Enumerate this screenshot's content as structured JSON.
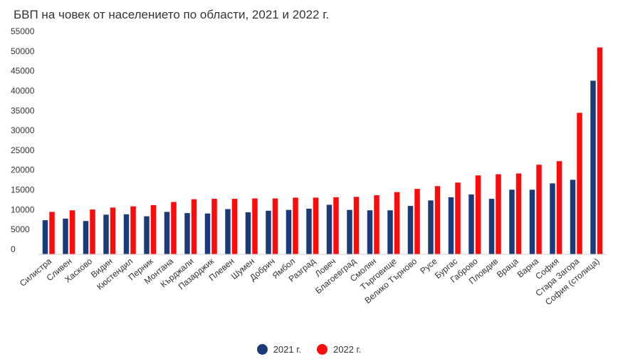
{
  "chart_data": {
    "type": "bar",
    "title": "БВП на човек от населението по области, 2021 и 2022 г.",
    "xlabel": "",
    "ylabel": "",
    "ylim": [
      0,
      55000
    ],
    "yticks": [
      0,
      5000,
      10000,
      15000,
      20000,
      25000,
      30000,
      35000,
      40000,
      45000,
      50000,
      55000
    ],
    "grid": false,
    "legend_position": "bottom",
    "categories": [
      "Силистра",
      "Сливен",
      "Хасково",
      "Видин",
      "Кюстендил",
      "Перник",
      "Монтана",
      "Кърджали",
      "Пазарджик",
      "Плевен",
      "Шумен",
      "Добрич",
      "Ямбол",
      "Разград",
      "Ловеч",
      "Благоевград",
      "Смолян",
      "Търговище",
      "Велико Търново",
      "Русе",
      "Бургас",
      "Габрово",
      "Пловдив",
      "Враца",
      "Варна",
      "София",
      "Стара Загора",
      "София (столица)"
    ],
    "series": [
      {
        "name": "2021 г.",
        "color": "#1b3a7a",
        "values": [
          8600,
          9000,
          8400,
          10000,
          10100,
          9600,
          10700,
          10400,
          10300,
          11400,
          10600,
          11000,
          11200,
          11500,
          12500,
          11200,
          11100,
          11100,
          12200,
          13600,
          14400,
          15100,
          14000,
          16300,
          16300,
          17900,
          18800,
          43800
        ]
      },
      {
        "name": "2022 г.",
        "color": "#ff0a0a",
        "values": [
          10700,
          11100,
          11300,
          11800,
          12100,
          12400,
          13200,
          13900,
          14000,
          14000,
          14100,
          14100,
          14300,
          14300,
          14400,
          14500,
          14900,
          15700,
          16500,
          17200,
          18100,
          19900,
          20200,
          20400,
          22600,
          23500,
          35700,
          52200
        ]
      }
    ]
  }
}
